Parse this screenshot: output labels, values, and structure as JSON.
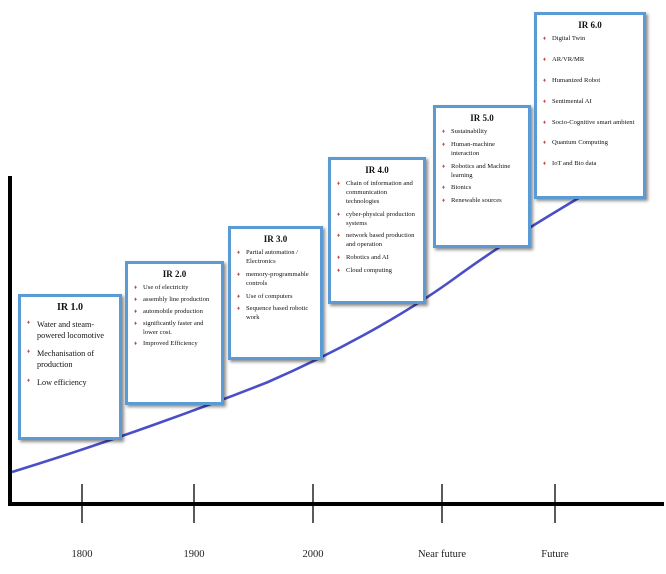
{
  "stages": [
    {
      "id": "ir1",
      "title": "IR 1.0",
      "items": [
        "Water and steam-powered locomotive",
        "Mechanisation of production",
        "Low efficiency"
      ]
    },
    {
      "id": "ir2",
      "title": "IR 2.0",
      "items": [
        "Use of electricity",
        "assembly line production",
        "automobile production",
        "significantly faster and lower cost.",
        "Improved Efficiency"
      ]
    },
    {
      "id": "ir3",
      "title": "IR 3.0",
      "items": [
        "Partial automation / Electronics",
        "memory-programmable controls",
        "Use of computers",
        "Sequence based robotic work"
      ]
    },
    {
      "id": "ir4",
      "title": "IR 4.0",
      "items": [
        "Chain of information and communication technologies",
        "cyber-physical production systems",
        "network based production and operation",
        "Robotics and AI",
        "Cloud computing"
      ]
    },
    {
      "id": "ir5",
      "title": "IR 5.0",
      "items": [
        "Sustainability",
        "Human-machine interaction",
        "Robotics and Machine learning",
        "Bionics",
        "Renewable sources"
      ]
    },
    {
      "id": "ir6",
      "title": "IR 6.0",
      "items": [
        "Digital Twin",
        "AR/VR/MR",
        "Humanized Robot",
        "Sentimental AI",
        "Socio-Cognitive smart ambient",
        "Quantum Computing",
        "IoT and Bio data"
      ]
    }
  ],
  "axis_labels": [
    "1800",
    "1900",
    "2000",
    "Near future",
    "Future"
  ],
  "colors": {
    "box_border": "#5b9bd5",
    "curve": "#4a4fc7",
    "axis": "#000000",
    "bullet": "#c0504d"
  }
}
